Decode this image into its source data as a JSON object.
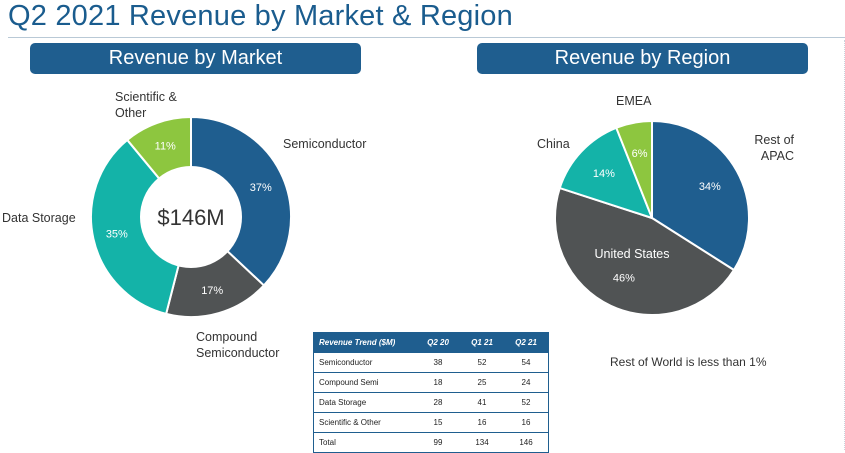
{
  "page_title": "Q2 2021 Revenue by Market & Region",
  "headers": {
    "market": "Revenue by Market",
    "region": "Revenue by Region"
  },
  "chart_data": [
    {
      "type": "pie",
      "variant": "donut",
      "title": "Revenue by Market",
      "center_label": "$146M",
      "categories": [
        "Semiconductor",
        "Compound Semiconductor",
        "Data Storage",
        "Scientific & Other"
      ],
      "values": [
        37,
        17,
        35,
        11
      ],
      "value_labels": [
        "37%",
        "17%",
        "35%",
        "11%"
      ],
      "colors": [
        "#1f5e8f",
        "#505354",
        "#14b3a8",
        "#8dc63f"
      ],
      "outside_labels": {
        "semiconductor": "Semiconductor",
        "compound_line1": "Compound",
        "compound_line2": "Semiconductor",
        "data_storage": "Data Storage",
        "scientific_line1": "Scientific &",
        "scientific_line2": "Other"
      }
    },
    {
      "type": "pie",
      "title": "Revenue by Region",
      "categories": [
        "Rest of APAC",
        "United States",
        "China",
        "EMEA"
      ],
      "values": [
        34,
        46,
        14,
        6
      ],
      "value_labels": [
        "34%",
        "46%",
        "14%",
        "6%"
      ],
      "colors": [
        "#1f5e8f",
        "#505354",
        "#14b3a8",
        "#8dc63f"
      ],
      "outside_labels": {
        "apac_line1": "Rest of",
        "apac_line2": "APAC",
        "us": "United States",
        "china": "China",
        "emea": "EMEA"
      }
    },
    {
      "type": "table",
      "title": "Revenue Trend ($M)",
      "columns": [
        "Revenue Trend ($M)",
        "Q2 20",
        "Q1 21",
        "Q2 21"
      ],
      "rows": [
        [
          "Semiconductor",
          "38",
          "52",
          "54"
        ],
        [
          "Compound Semi",
          "18",
          "25",
          "24"
        ],
        [
          "Data Storage",
          "28",
          "41",
          "52"
        ],
        [
          "Scientific & Other",
          "15",
          "16",
          "16"
        ],
        [
          "Total",
          "99",
          "134",
          "146"
        ]
      ]
    }
  ],
  "note": "Rest of World is less than 1%"
}
